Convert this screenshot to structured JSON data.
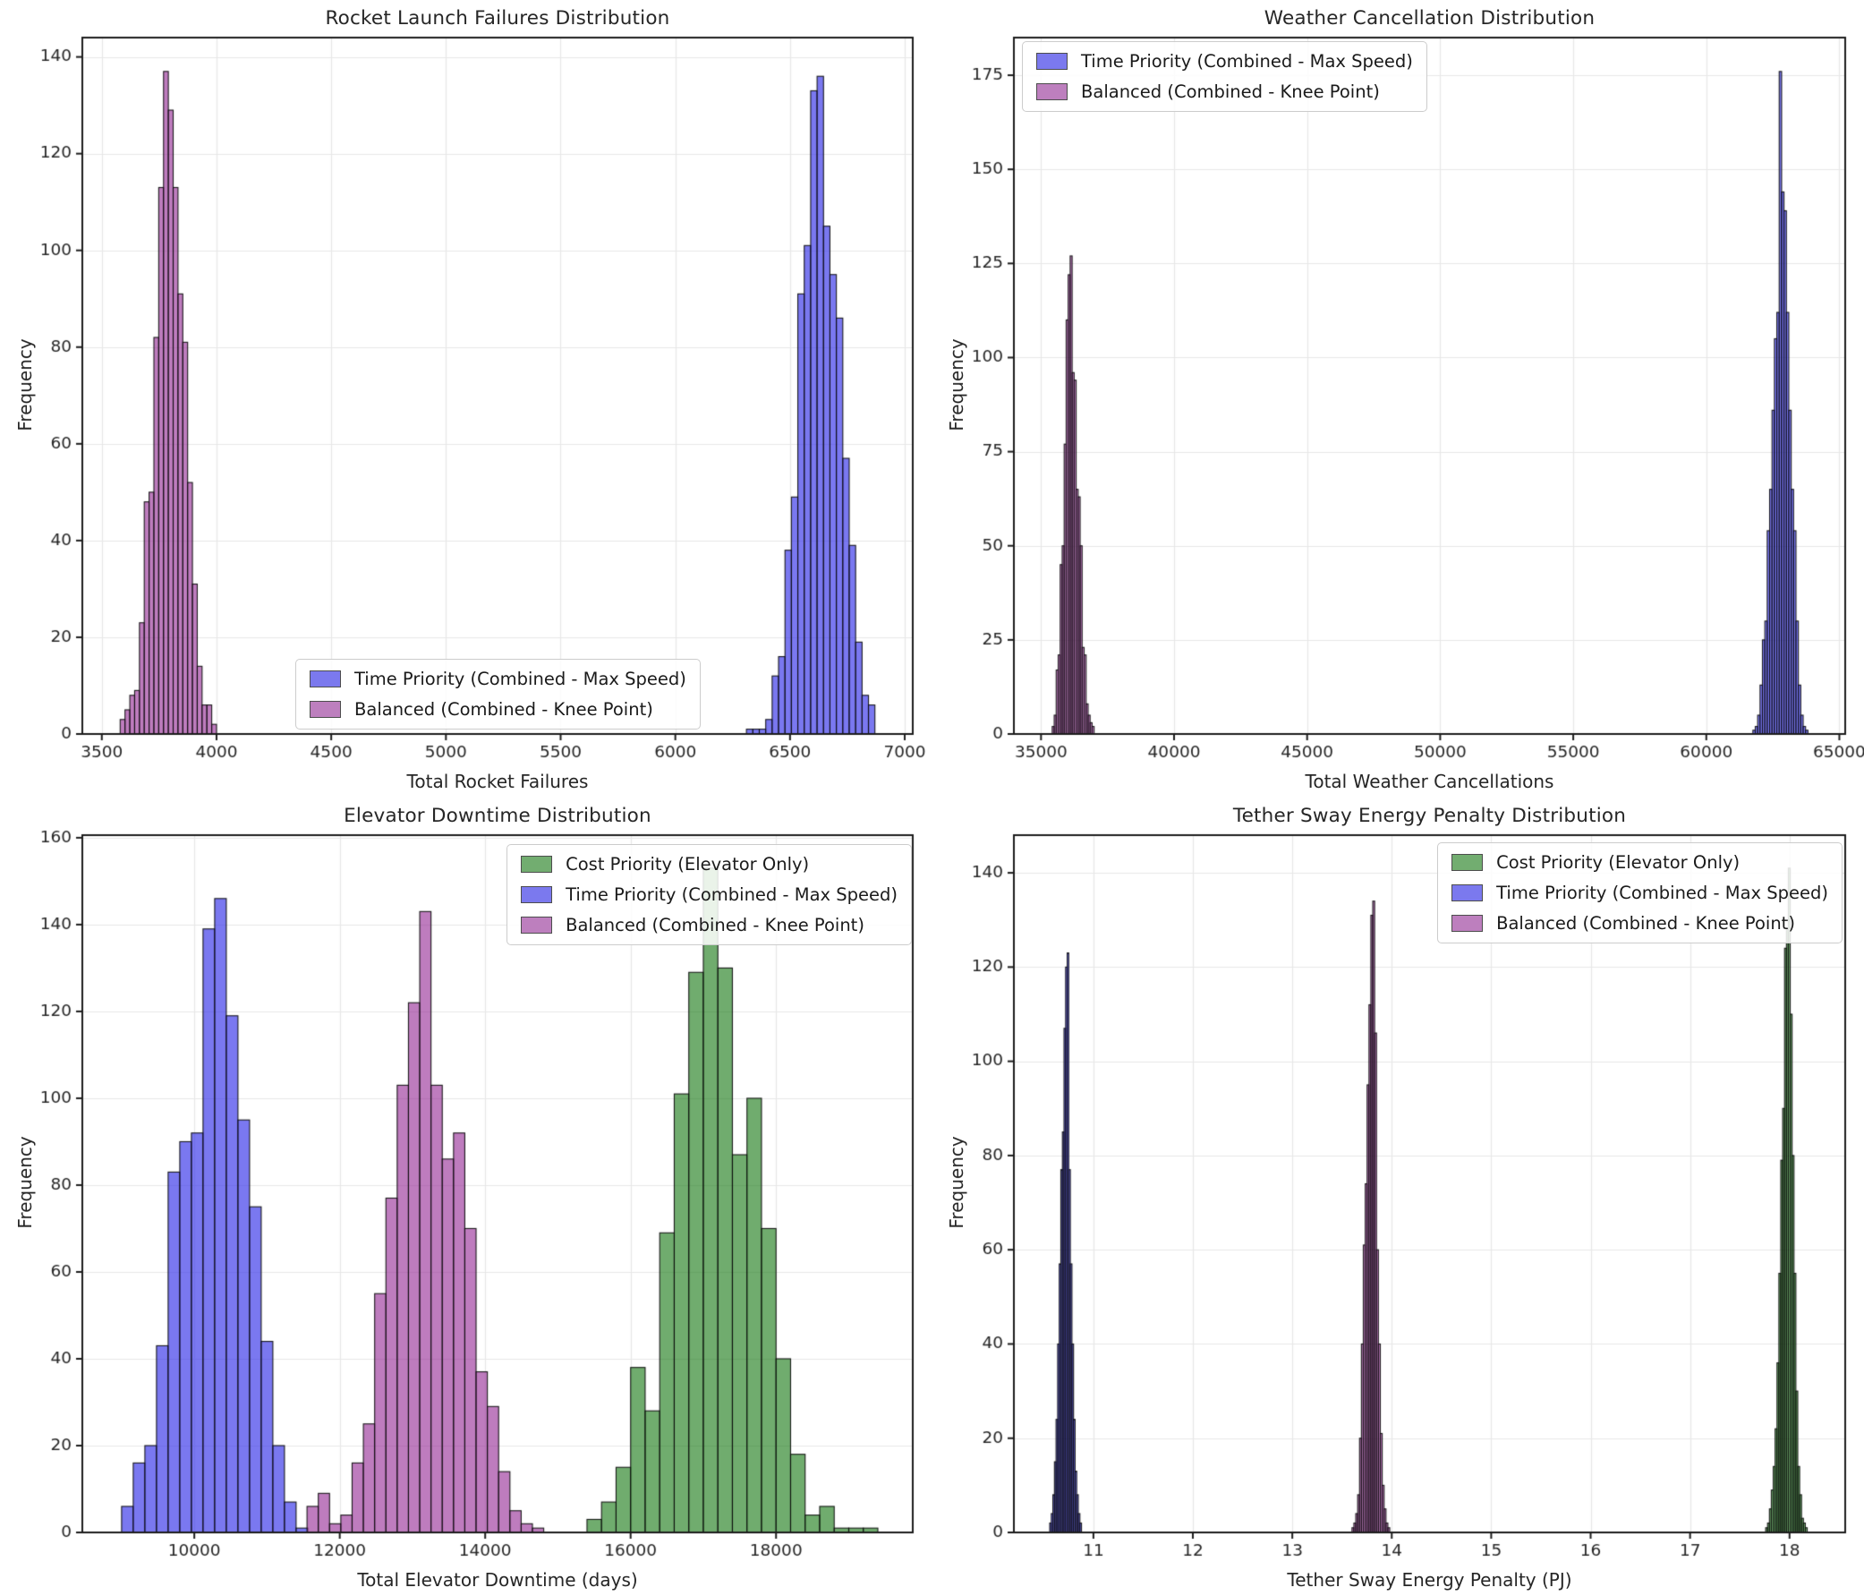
{
  "figure": {
    "background": "#ffffff",
    "grid_color": "#e7e7e7",
    "spine_color": "#1c1c1c",
    "tick_label_color": "#262626",
    "bar_edge_color": "rgba(12,12,12,0.92)"
  },
  "chart_data": [
    {
      "type": "bar",
      "subtype": "histogram",
      "title": "Rocket Launch Failures Distribution",
      "xlabel": "Total Rocket Failures",
      "ylabel": "Frequency",
      "xlim": [
        3415,
        7035
      ],
      "ylim": [
        0,
        144
      ],
      "xticks": [
        3500,
        4000,
        4500,
        5000,
        5500,
        6000,
        6500,
        7000
      ],
      "yticks": [
        0,
        20,
        40,
        60,
        80,
        100,
        120,
        140
      ],
      "grid": true,
      "legend_position": "lower center",
      "series": [
        {
          "name": "Time Priority (Combined - Max Speed)",
          "swatch": "#7b79ee",
          "fill": "rgba(50,48,232,0.65)",
          "bin_start": 6310,
          "bin_width": 28,
          "counts": [
            1,
            1,
            1,
            3,
            12,
            16,
            38,
            49,
            91,
            101,
            133,
            136,
            105,
            95,
            86,
            57,
            39,
            19,
            8,
            6
          ]
        },
        {
          "name": "Balanced (Combined - Knee Point)",
          "swatch": "#bd7fbe",
          "fill": "rgba(150,44,150,0.62)",
          "bin_start": 3580,
          "bin_width": 21,
          "counts": [
            3,
            5,
            8,
            9,
            23,
            48,
            50,
            82,
            113,
            137,
            129,
            113,
            91,
            81,
            52,
            31,
            14,
            6,
            6,
            2
          ]
        }
      ]
    },
    {
      "type": "bar",
      "subtype": "histogram",
      "title": "Weather Cancellation Distribution",
      "xlabel": "Total Weather Cancellations",
      "ylabel": "Frequency",
      "xlim": [
        33980,
        65220
      ],
      "ylim": [
        0,
        185
      ],
      "xticks": [
        35000,
        40000,
        45000,
        50000,
        55000,
        60000,
        65000
      ],
      "yticks": [
        0,
        25,
        50,
        75,
        100,
        125,
        150,
        175
      ],
      "grid": true,
      "legend_position": "upper left",
      "series": [
        {
          "name": "Time Priority (Combined - Max Speed)",
          "swatch": "#7b79ee",
          "fill": "rgba(50,48,232,0.65)",
          "bin_start": 61750,
          "bin_width": 90,
          "counts": [
            1,
            2,
            5,
            13,
            25,
            30,
            54,
            65,
            86,
            105,
            112,
            176,
            144,
            139,
            112,
            86,
            65,
            54,
            30,
            13,
            5,
            2,
            1
          ]
        },
        {
          "name": "Balanced (Combined - Knee Point)",
          "swatch": "#bd7fbe",
          "fill": "rgba(150,44,150,0.62)",
          "bin_start": 35420,
          "bin_width": 75,
          "counts": [
            2,
            5,
            17,
            21,
            45,
            50,
            77,
            110,
            122,
            127,
            96,
            94,
            65,
            63,
            50,
            23,
            21,
            8,
            5,
            3,
            2
          ]
        }
      ]
    },
    {
      "type": "bar",
      "subtype": "histogram",
      "title": "Elevator Downtime Distribution",
      "xlabel": "Total Elevator Downtime (days)",
      "ylabel": "Frequency",
      "xlim": [
        8460,
        19880
      ],
      "ylim": [
        0,
        160.6
      ],
      "xticks": [
        10000,
        12000,
        14000,
        16000,
        18000
      ],
      "yticks": [
        0,
        20,
        40,
        60,
        80,
        100,
        120,
        140,
        160
      ],
      "grid": true,
      "legend_position": "upper right",
      "series": [
        {
          "name": "Cost Priority (Elevator Only)",
          "swatch": "#72ad70",
          "fill": "rgba(28,124,26,0.63)",
          "bin_start": 15400,
          "bin_width": 200,
          "counts": [
            3,
            7,
            15,
            38,
            28,
            69,
            101,
            129,
            153,
            130,
            87,
            100,
            70,
            40,
            18,
            4,
            6,
            1,
            1,
            1
          ]
        },
        {
          "name": "Time Priority (Combined - Max Speed)",
          "swatch": "#7b79ee",
          "fill": "rgba(50,48,232,0.65)",
          "bin_start": 9000,
          "bin_width": 160,
          "counts": [
            6,
            16,
            20,
            43,
            83,
            90,
            92,
            139,
            146,
            119,
            95,
            75,
            44,
            20,
            7,
            1
          ]
        },
        {
          "name": "Balanced (Combined - Knee Point)",
          "swatch": "#bd7fbe",
          "fill": "rgba(150,44,150,0.62)",
          "bin_start": 11550,
          "bin_width": 155,
          "counts": [
            6,
            9,
            2,
            4,
            16,
            25,
            55,
            77,
            103,
            122,
            143,
            103,
            86,
            92,
            70,
            37,
            29,
            14,
            5,
            2,
            1
          ]
        }
      ]
    },
    {
      "type": "bar",
      "subtype": "histogram",
      "title": "Tether Sway Energy Penalty Distribution",
      "xlabel": "Tether Sway Energy Penalty (PJ)",
      "ylabel": "Frequency",
      "xlim": [
        10.2,
        18.56
      ],
      "ylim": [
        0,
        148
      ],
      "xticks": [
        11,
        12,
        13,
        14,
        15,
        16,
        17,
        18
      ],
      "yticks": [
        0,
        20,
        40,
        60,
        80,
        100,
        120,
        140
      ],
      "grid": true,
      "legend_position": "upper right",
      "series": [
        {
          "name": "Cost Priority (Elevator Only)",
          "swatch": "#72ad70",
          "fill": "rgba(28,124,26,0.63)",
          "bin_start": 17.76,
          "bin_width": 0.019,
          "counts": [
            1,
            2,
            5,
            9,
            14,
            22,
            36,
            55,
            79,
            90,
            124,
            128,
            141,
            110,
            80,
            55,
            30,
            14,
            8,
            3,
            2,
            1
          ]
        },
        {
          "name": "Time Priority (Combined - Max Speed)",
          "swatch": "#7b79ee",
          "fill": "rgba(50,48,232,0.65)",
          "bin_start": 10.56,
          "bin_width": 0.016,
          "counts": [
            2,
            4,
            8,
            15,
            24,
            40,
            57,
            77,
            85,
            107,
            120,
            123,
            77,
            57,
            40,
            24,
            13,
            8,
            4,
            2
          ]
        },
        {
          "name": "Balanced (Combined - Knee Point)",
          "swatch": "#bd7fbe",
          "fill": "rgba(150,44,150,0.62)",
          "bin_start": 13.6,
          "bin_width": 0.019,
          "counts": [
            1,
            2,
            4,
            8,
            20,
            40,
            61,
            74,
            95,
            112,
            131,
            134,
            106,
            60,
            40,
            21,
            10,
            5,
            2,
            1
          ]
        }
      ]
    }
  ]
}
